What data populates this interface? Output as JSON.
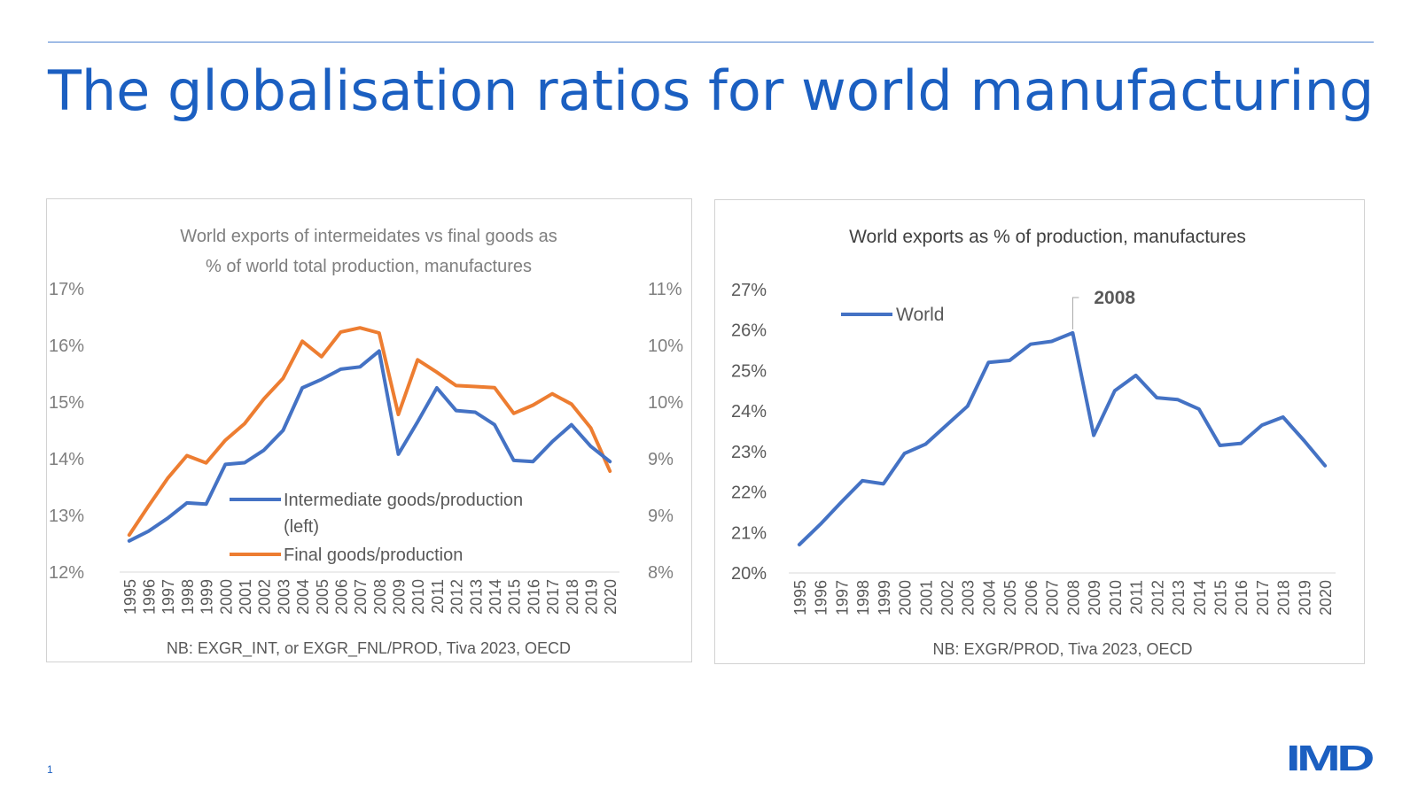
{
  "slide": {
    "title": "The globalisation ratios for world manufacturing",
    "page_number": "1",
    "logo_text": "IMD"
  },
  "colors": {
    "title": "#1b5fc1",
    "blue": "#4472c4",
    "orange": "#ed7d31",
    "gray_text": "#7f7f7f",
    "dark_text": "#595959"
  },
  "chart_data": [
    {
      "type": "line",
      "title": "World exports of intermeidates vs final goods as % of world total production, manufactures",
      "title_lines": [
        "World exports of intermeidates vs final goods as",
        "% of world total production, manufactures"
      ],
      "note": "NB: EXGR_INT, or EXGR_FNL/PROD, Tiva 2023, OECD",
      "x": [
        "1995",
        "1996",
        "1997",
        "1998",
        "1999",
        "2000",
        "2001",
        "2002",
        "2003",
        "2004",
        "2005",
        "2006",
        "2007",
        "2008",
        "2009",
        "2010",
        "2011",
        "2012",
        "2013",
        "2014",
        "2015",
        "2016",
        "2017",
        "2018",
        "2019",
        "2020"
      ],
      "y_left": {
        "ticks": [
          "17%",
          "16%",
          "15%",
          "14%",
          "13%",
          "12%"
        ],
        "ylim": [
          12,
          17
        ]
      },
      "y_right": {
        "ticks": [
          "11%",
          "10%",
          "10%",
          "9%",
          "9%",
          "8%"
        ],
        "ylim": [
          8,
          10.75
        ]
      },
      "legend": [
        {
          "label_lines": [
            "Intermediate goods/production",
            "(left)"
          ],
          "color": "#4472c4"
        },
        {
          "label_lines": [
            "Final goods/production"
          ],
          "color": "#ed7d31"
        }
      ],
      "legend_position": "center-left",
      "grid": false,
      "series": [
        {
          "name": "Intermediate goods/production (left)",
          "axis": "left",
          "color": "#4472c4",
          "values": [
            12.55,
            12.72,
            12.95,
            13.22,
            13.2,
            13.9,
            13.93,
            14.15,
            14.5,
            15.25,
            15.4,
            15.58,
            15.62,
            15.9,
            14.08,
            14.65,
            15.25,
            14.85,
            14.82,
            14.6,
            13.97,
            13.95,
            14.3,
            14.6,
            14.22,
            13.95
          ]
        },
        {
          "name": "Final goods/production",
          "axis": "right",
          "color": "#ed7d31",
          "values": [
            8.36,
            8.64,
            8.91,
            9.13,
            9.06,
            9.28,
            9.44,
            9.68,
            9.88,
            10.24,
            10.09,
            10.33,
            10.37,
            10.32,
            9.53,
            10.06,
            9.94,
            9.81,
            9.8,
            9.79,
            9.54,
            9.62,
            9.73,
            9.63,
            9.4,
            8.98
          ]
        }
      ]
    },
    {
      "type": "line",
      "title": "World exports as % of production, manufactures",
      "note": "NB: EXGR/PROD, Tiva 2023, OECD",
      "x": [
        "1995",
        "1996",
        "1997",
        "1998",
        "1999",
        "2000",
        "2001",
        "2002",
        "2003",
        "2004",
        "2005",
        "2006",
        "2007",
        "2008",
        "2009",
        "2010",
        "2011",
        "2012",
        "2013",
        "2014",
        "2015",
        "2016",
        "2017",
        "2018",
        "2019",
        "2020"
      ],
      "y_left": {
        "ticks": [
          "27%",
          "26%",
          "25%",
          "24%",
          "23%",
          "22%",
          "21%",
          "20%"
        ],
        "ylim": [
          20,
          27
        ]
      },
      "legend": [
        {
          "label_lines": [
            "World"
          ],
          "color": "#4472c4"
        }
      ],
      "legend_position": "top-left",
      "grid": false,
      "annotation": {
        "text": "2008",
        "x": "2008"
      },
      "series": [
        {
          "name": "World",
          "axis": "left",
          "color": "#4472c4",
          "values": [
            20.7,
            21.2,
            21.75,
            22.28,
            22.2,
            22.95,
            23.18,
            23.65,
            24.12,
            25.2,
            25.25,
            25.65,
            25.72,
            25.93,
            23.4,
            24.5,
            24.88,
            24.33,
            24.28,
            24.05,
            23.15,
            23.2,
            23.65,
            23.85,
            23.27,
            22.65
          ]
        }
      ]
    }
  ]
}
